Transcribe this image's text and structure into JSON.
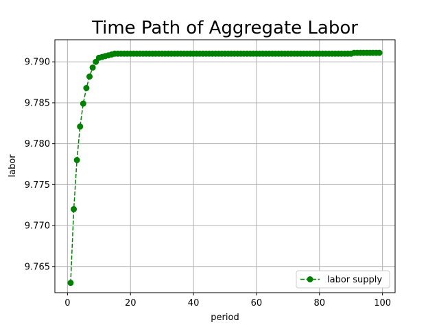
{
  "chart_data": {
    "type": "line",
    "title": "Time Path of Aggregate Labor",
    "xlabel": "period",
    "ylabel": "labor",
    "xlim": [
      -4,
      104
    ],
    "ylim": [
      9.7618,
      9.7927
    ],
    "x_ticks": [
      0,
      20,
      40,
      60,
      80,
      100
    ],
    "y_ticks": [
      9.765,
      9.77,
      9.775,
      9.78,
      9.785,
      9.79
    ],
    "x_tick_labels": [
      "0",
      "20",
      "40",
      "60",
      "80",
      "100"
    ],
    "y_tick_labels": [
      "9.765",
      "9.770",
      "9.775",
      "9.780",
      "9.785",
      "9.790"
    ],
    "grid": true,
    "legend_position": "lower-right",
    "series": [
      {
        "name": "labor supply",
        "color": "#008000",
        "line_style": "dashed",
        "marker": "circle",
        "x": [
          1,
          2,
          3,
          4,
          5,
          6,
          7,
          8,
          9,
          10,
          11,
          12,
          13,
          14,
          15,
          16,
          17,
          18,
          19,
          20,
          21,
          22,
          23,
          24,
          25,
          26,
          27,
          28,
          29,
          30,
          31,
          32,
          33,
          34,
          35,
          36,
          37,
          38,
          39,
          40,
          41,
          42,
          43,
          44,
          45,
          46,
          47,
          48,
          49,
          50,
          51,
          52,
          53,
          54,
          55,
          56,
          57,
          58,
          59,
          60,
          61,
          62,
          63,
          64,
          65,
          66,
          67,
          68,
          69,
          70,
          71,
          72,
          73,
          74,
          75,
          76,
          77,
          78,
          79,
          80,
          81,
          82,
          83,
          84,
          85,
          86,
          87,
          88,
          89,
          90,
          91,
          92,
          93,
          94,
          95,
          96,
          97,
          98,
          99
        ],
        "values": [
          9.763,
          9.772,
          9.778,
          9.7821,
          9.7849,
          9.7868,
          9.7882,
          9.7893,
          9.79,
          9.7905,
          9.7906,
          9.7907,
          9.7908,
          9.7909,
          9.791,
          9.791,
          9.791,
          9.791,
          9.791,
          9.791,
          9.791,
          9.791,
          9.791,
          9.791,
          9.791,
          9.791,
          9.791,
          9.791,
          9.791,
          9.791,
          9.791,
          9.791,
          9.791,
          9.791,
          9.791,
          9.791,
          9.791,
          9.791,
          9.791,
          9.791,
          9.791,
          9.791,
          9.791,
          9.791,
          9.791,
          9.791,
          9.791,
          9.791,
          9.791,
          9.791,
          9.791,
          9.791,
          9.791,
          9.791,
          9.791,
          9.791,
          9.791,
          9.791,
          9.791,
          9.791,
          9.791,
          9.791,
          9.791,
          9.791,
          9.791,
          9.791,
          9.791,
          9.791,
          9.791,
          9.791,
          9.791,
          9.791,
          9.791,
          9.791,
          9.791,
          9.791,
          9.791,
          9.791,
          9.791,
          9.791,
          9.791,
          9.791,
          9.791,
          9.791,
          9.791,
          9.791,
          9.791,
          9.791,
          9.791,
          9.791,
          9.7911,
          9.7911,
          9.7911,
          9.7911,
          9.7911,
          9.7911,
          9.7911,
          9.7911,
          9.7911
        ]
      }
    ]
  }
}
